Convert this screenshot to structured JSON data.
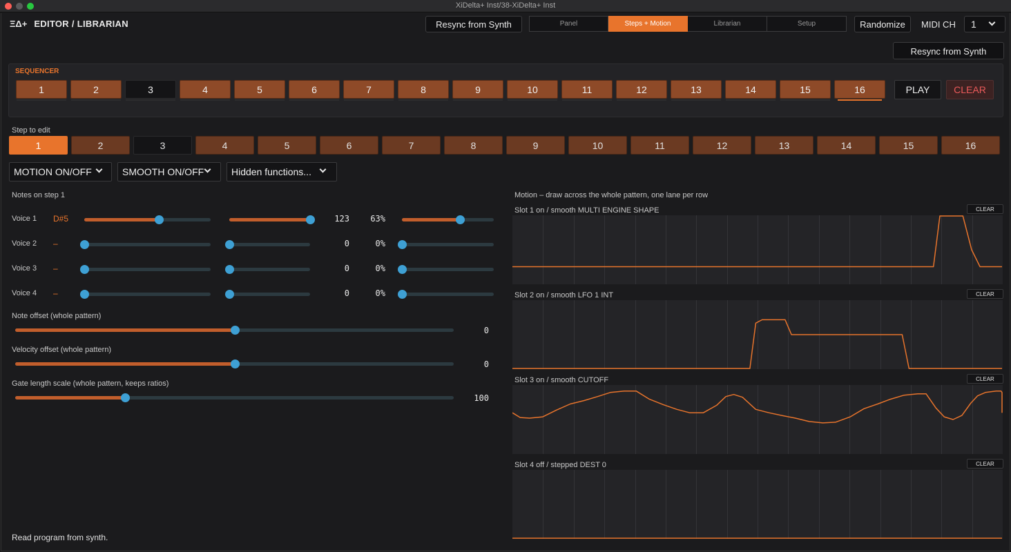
{
  "window": {
    "title": "XiDelta+ Inst/38-XiDelta+ Inst"
  },
  "header": {
    "logo_mark": "ΞΔ+",
    "title": "EDITOR / LIBRARIAN",
    "resync_label": "Resync from Synth",
    "tabs": [
      {
        "label": "Panel",
        "active": false
      },
      {
        "label": "Steps + Motion",
        "active": true
      },
      {
        "label": "Librarian",
        "active": false
      },
      {
        "label": "Setup",
        "active": false
      }
    ],
    "randomize_label": "Randomize",
    "midi_label": "MIDI CH",
    "midi_value": "1"
  },
  "resync_secondary_label": "Resync from Synth",
  "sequencer": {
    "title": "SEQUENCER",
    "steps": [
      "1",
      "2",
      "3",
      "4",
      "5",
      "6",
      "7",
      "8",
      "9",
      "10",
      "11",
      "12",
      "13",
      "14",
      "15",
      "16"
    ],
    "inactive_steps": [
      3
    ],
    "play_label": "PLAY",
    "clear_label": "CLEAR"
  },
  "step_edit": {
    "label": "Step to edit",
    "steps": [
      "1",
      "2",
      "3",
      "4",
      "5",
      "6",
      "7",
      "8",
      "9",
      "10",
      "11",
      "12",
      "13",
      "14",
      "15",
      "16"
    ],
    "selected": 1,
    "inactive_steps": [
      3
    ]
  },
  "dropdowns": {
    "motion": "MOTION ON/OFF",
    "smooth": "SMOOTH ON/OFF",
    "hidden": "Hidden functions..."
  },
  "notes": {
    "label": "Notes on step 1",
    "voices": [
      {
        "label": "Voice 1",
        "note": "D#5",
        "note_level": 0.59,
        "velocity_level": 1.0,
        "velocity": "123",
        "gate": "63%",
        "gate_level": 0.63
      },
      {
        "label": "Voice 2",
        "note": "–",
        "note_level": 0.0,
        "velocity_level": 0.0,
        "velocity": "0",
        "gate": "0%",
        "gate_level": 0.0
      },
      {
        "label": "Voice 3",
        "note": "–",
        "note_level": 0.0,
        "velocity_level": 0.0,
        "velocity": "0",
        "gate": "0%",
        "gate_level": 0.0
      },
      {
        "label": "Voice 4",
        "note": "–",
        "note_level": 0.0,
        "velocity_level": 0.0,
        "velocity": "0",
        "gate": "0%",
        "gate_level": 0.0
      }
    ]
  },
  "offsets": [
    {
      "label": "Note offset (whole pattern)",
      "value": "0",
      "level": 0.5
    },
    {
      "label": "Velocity offset (whole pattern)",
      "value": "0",
      "level": 0.5
    },
    {
      "label": "Gate length scale (whole pattern, keeps ratios)",
      "value": "100",
      "level": 0.25
    }
  ],
  "motion": {
    "label": "Motion – draw across the whole pattern, one lane per row",
    "clear_label": "CLEAR",
    "lanes": [
      {
        "label": "Slot 1  on / smooth  MULTI ENGINE SHAPE",
        "points": [
          [
            0,
            0.25
          ],
          [
            0.86,
            0.25
          ],
          [
            0.873,
            1
          ],
          [
            0.92,
            1
          ],
          [
            0.938,
            0.5
          ],
          [
            0.955,
            0.25
          ],
          [
            1,
            0.25
          ]
        ]
      },
      {
        "label": "Slot 2  on / smooth  LFO 1 INT",
        "points": [
          [
            0,
            0
          ],
          [
            0.485,
            0
          ],
          [
            0.497,
            0.67
          ],
          [
            0.51,
            0.72
          ],
          [
            0.557,
            0.72
          ],
          [
            0.57,
            0.5
          ],
          [
            0.796,
            0.5
          ],
          [
            0.81,
            0
          ],
          [
            1,
            0
          ]
        ]
      },
      {
        "label": "Slot 3  on / smooth  CUTOFF",
        "points": [
          [
            0,
            0.6
          ],
          [
            0.016,
            0.53
          ],
          [
            0.035,
            0.52
          ],
          [
            0.062,
            0.54
          ],
          [
            0.09,
            0.64
          ],
          [
            0.118,
            0.73
          ],
          [
            0.146,
            0.78
          ],
          [
            0.174,
            0.84
          ],
          [
            0.2,
            0.9
          ],
          [
            0.228,
            0.92
          ],
          [
            0.253,
            0.92
          ],
          [
            0.28,
            0.8
          ],
          [
            0.308,
            0.72
          ],
          [
            0.336,
            0.65
          ],
          [
            0.362,
            0.6
          ],
          [
            0.39,
            0.6
          ],
          [
            0.417,
            0.71
          ],
          [
            0.436,
            0.84
          ],
          [
            0.452,
            0.87
          ],
          [
            0.47,
            0.83
          ],
          [
            0.497,
            0.65
          ],
          [
            0.524,
            0.6
          ],
          [
            0.55,
            0.56
          ],
          [
            0.578,
            0.52
          ],
          [
            0.606,
            0.47
          ],
          [
            0.634,
            0.45
          ],
          [
            0.66,
            0.46
          ],
          [
            0.69,
            0.54
          ],
          [
            0.718,
            0.66
          ],
          [
            0.746,
            0.73
          ],
          [
            0.772,
            0.8
          ],
          [
            0.8,
            0.86
          ],
          [
            0.828,
            0.88
          ],
          [
            0.845,
            0.88
          ],
          [
            0.865,
            0.67
          ],
          [
            0.882,
            0.54
          ],
          [
            0.9,
            0.5
          ],
          [
            0.918,
            0.56
          ],
          [
            0.936,
            0.74
          ],
          [
            0.95,
            0.85
          ],
          [
            0.966,
            0.9
          ],
          [
            0.988,
            0.92
          ],
          [
            0.998,
            0.92
          ],
          [
            1.0,
            0.9
          ],
          [
            1.0,
            0.6
          ]
        ]
      },
      {
        "label": "Slot 4  off / stepped  DEST 0",
        "points": [
          [
            0,
            0
          ],
          [
            1,
            0
          ]
        ]
      }
    ]
  },
  "status": "Read program from synth."
}
